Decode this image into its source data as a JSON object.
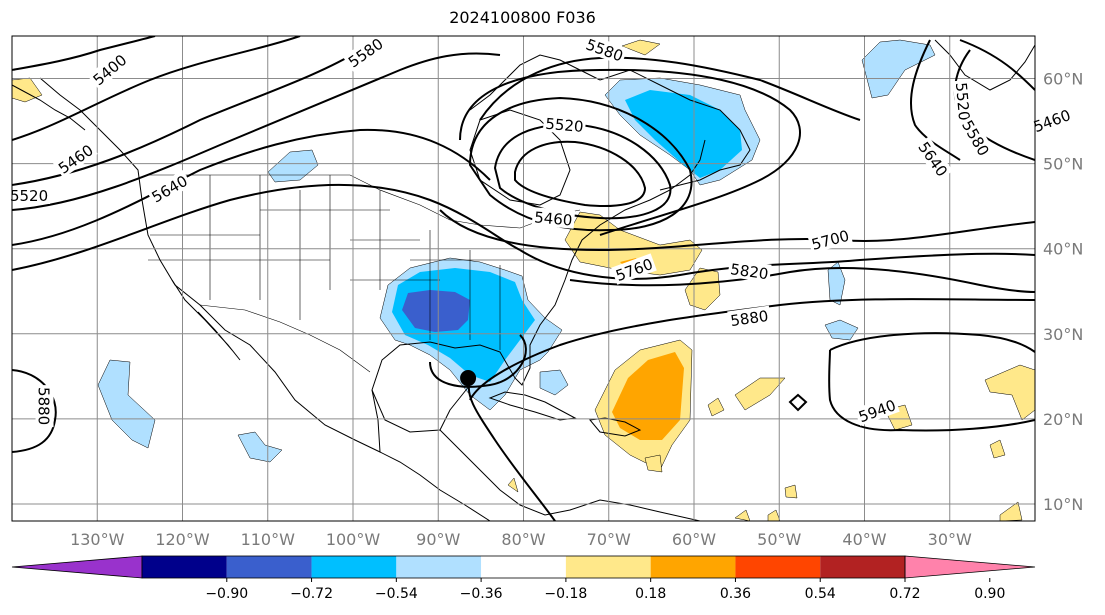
{
  "title": "2024100800 F036",
  "map": {
    "lon_range": [
      -140,
      -20
    ],
    "lat_range": [
      8,
      65
    ],
    "lon_ticks": [
      {
        "value": -130,
        "label": "130°W"
      },
      {
        "value": -120,
        "label": "120°W"
      },
      {
        "value": -110,
        "label": "110°W"
      },
      {
        "value": -100,
        "label": "100°W"
      },
      {
        "value": -90,
        "label": "90°W"
      },
      {
        "value": -80,
        "label": "80°W"
      },
      {
        "value": -70,
        "label": "70°W"
      },
      {
        "value": -60,
        "label": "60°W"
      },
      {
        "value": -50,
        "label": "50°W"
      },
      {
        "value": -40,
        "label": "40°W"
      },
      {
        "value": -30,
        "label": "30°W"
      }
    ],
    "lat_ticks": [
      {
        "value": 10,
        "label": "10°N"
      },
      {
        "value": 20,
        "label": "20°N"
      },
      {
        "value": 30,
        "label": "30°N"
      },
      {
        "value": 40,
        "label": "40°N"
      },
      {
        "value": 50,
        "label": "50°N"
      },
      {
        "value": 60,
        "label": "60°N"
      }
    ],
    "contour_labels": [
      {
        "text": "5400",
        "lon": -128.5,
        "lat": 61.0,
        "angle": -40
      },
      {
        "text": "5580",
        "lon": -98.5,
        "lat": 63.0,
        "angle": -35
      },
      {
        "text": "5580",
        "lon": -70.5,
        "lat": 63.3,
        "angle": 20
      },
      {
        "text": "5520",
        "lon": -75.2,
        "lat": 54.5,
        "angle": 5
      },
      {
        "text": "5460",
        "lon": -132.5,
        "lat": 50.5,
        "angle": -35
      },
      {
        "text": "5520",
        "lon": -138.0,
        "lat": 46.2,
        "angle": 0
      },
      {
        "text": "5640",
        "lon": -121.5,
        "lat": 47.0,
        "angle": -30
      },
      {
        "text": "5460",
        "lon": -76.5,
        "lat": 43.5,
        "angle": 5
      },
      {
        "text": "5760",
        "lon": -67.0,
        "lat": 37.5,
        "angle": -20
      },
      {
        "text": "5700",
        "lon": -44.0,
        "lat": 41.0,
        "angle": -15
      },
      {
        "text": "5820",
        "lon": -53.5,
        "lat": 37.3,
        "angle": 8
      },
      {
        "text": "5880",
        "lon": -53.5,
        "lat": 31.8,
        "angle": -8
      },
      {
        "text": "5940",
        "lon": -38.5,
        "lat": 20.9,
        "angle": -20
      },
      {
        "text": "5880",
        "lon": -136.3,
        "lat": 21.5,
        "angle": 90
      },
      {
        "text": "5520",
        "lon": -28.5,
        "lat": 57.3,
        "angle": 85
      },
      {
        "text": "5580",
        "lon": -27.0,
        "lat": 53.0,
        "angle": 60
      },
      {
        "text": "5640",
        "lon": -32.0,
        "lat": 50.5,
        "angle": 55
      },
      {
        "text": "5460",
        "lon": -18.0,
        "lat": 55.0,
        "angle": -20
      }
    ],
    "storm_marker": {
      "lon": -86.5,
      "lat": 24.8
    }
  },
  "colorbar": {
    "colors": [
      "#9932cc",
      "#00008b",
      "#3a5fcd",
      "#00bfff",
      "#b0e0ff",
      "#ffffff",
      "#ffe88a",
      "#ffa500",
      "#ff4500",
      "#b22222",
      "#ff82ab"
    ],
    "levels": [
      {
        "value": -0.9,
        "label": "−0.90"
      },
      {
        "value": -0.72,
        "label": "−0.72"
      },
      {
        "value": -0.54,
        "label": "−0.54"
      },
      {
        "value": -0.36,
        "label": "−0.36"
      },
      {
        "value": -0.18,
        "label": "−0.18"
      },
      {
        "value": 0.18,
        "label": "0.18"
      },
      {
        "value": 0.36,
        "label": "0.36"
      },
      {
        "value": 0.54,
        "label": "0.54"
      },
      {
        "value": 0.72,
        "label": "0.72"
      },
      {
        "value": 0.9,
        "label": "0.90"
      }
    ]
  }
}
